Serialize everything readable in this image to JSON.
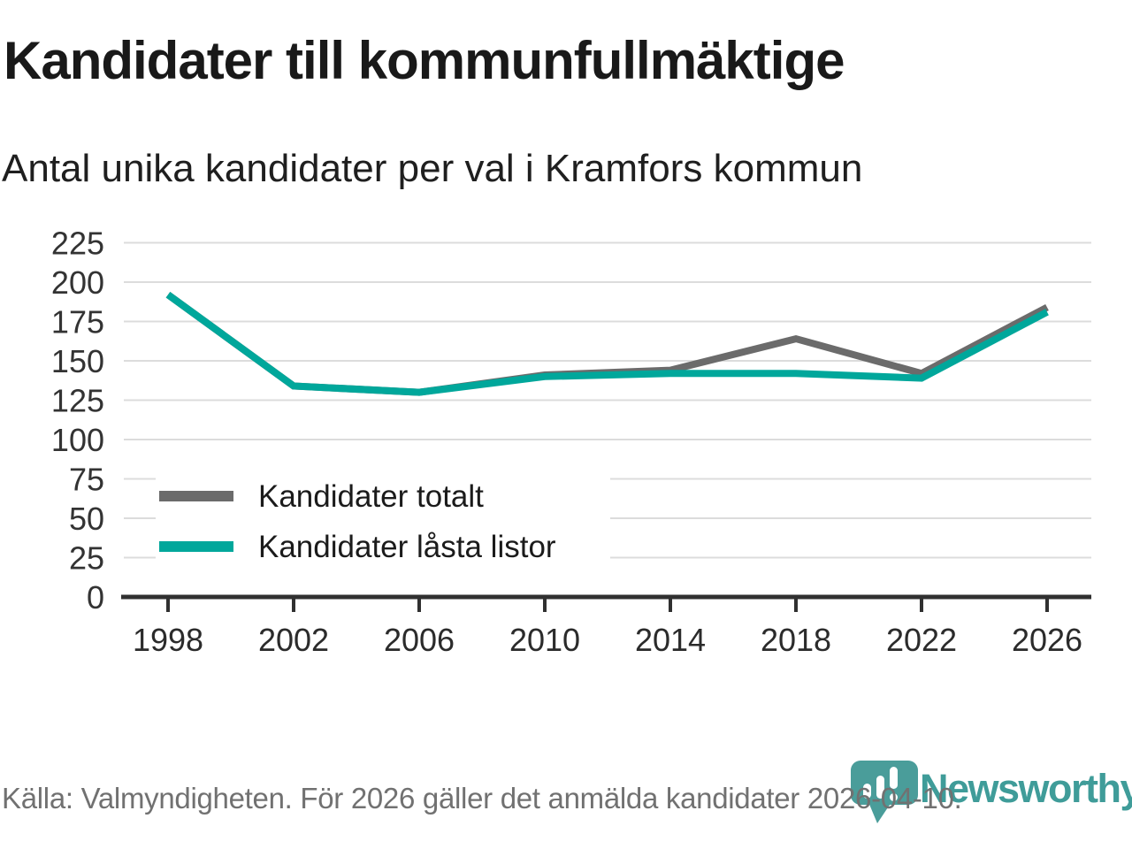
{
  "header": {
    "title": "Kandidater till kommunfullmäktige",
    "subtitle": "Antal unika kandidater per val i Kramfors kommun"
  },
  "chart_data": {
    "type": "line",
    "title": "Kandidater till kommunfullmäktige",
    "subtitle": "Antal unika kandidater per val i Kramfors kommun",
    "categories": [
      "1998",
      "2002",
      "2006",
      "2010",
      "2014",
      "2018",
      "2022",
      "2026"
    ],
    "series": [
      {
        "name": "Kandidater totalt",
        "color": "#6b6b6b",
        "values": [
          192,
          134,
          130,
          141,
          144,
          164,
          142,
          184
        ]
      },
      {
        "name": "Kandidater låsta listor",
        "color": "#00a79b",
        "values": [
          192,
          134,
          130,
          140,
          142,
          142,
          139,
          181
        ]
      }
    ],
    "ylim": [
      0,
      225
    ],
    "yticks": [
      0,
      25,
      50,
      75,
      100,
      125,
      150,
      175,
      200,
      225
    ],
    "grid": "horizontal",
    "legend_position": "inside-left",
    "xlabel": "",
    "ylabel": ""
  },
  "footer": {
    "source": "Källa: Valmyndigheten. För 2026 gäller det anmälda kandidater 2026-04-10."
  },
  "branding": {
    "logo_text": "Newsworthy",
    "logo_color": "#3f9c99",
    "icon": "newsworthy-speech-bubble-barchart-icon"
  },
  "colors": {
    "grid": "#dcdcdc",
    "axis": "#303030",
    "background": "#ffffff"
  }
}
